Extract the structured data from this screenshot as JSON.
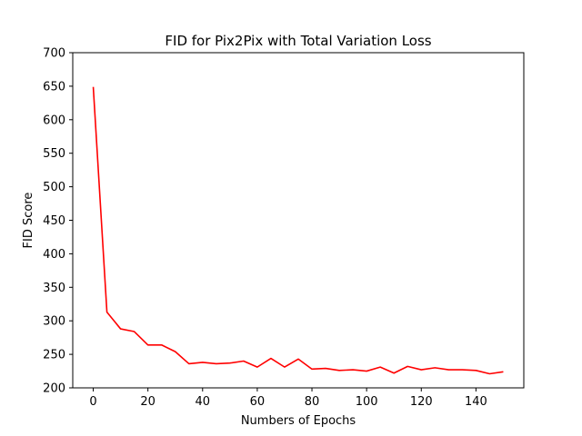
{
  "chart_data": {
    "type": "line",
    "title": "FID for Pix2Pix with Total Variation Loss",
    "xlabel": "Numbers of Epochs",
    "ylabel": "FID Score",
    "xlim": [
      -7.5,
      157.5
    ],
    "ylim": [
      200,
      700
    ],
    "xticks": [
      0,
      20,
      40,
      60,
      80,
      100,
      120,
      140
    ],
    "yticks": [
      200,
      250,
      300,
      350,
      400,
      450,
      500,
      550,
      600,
      650,
      700
    ],
    "grid": false,
    "legend": "none",
    "series": [
      {
        "color": "#ff0000",
        "x": [
          0,
          5,
          10,
          15,
          20,
          25,
          30,
          35,
          40,
          45,
          50,
          55,
          60,
          65,
          70,
          75,
          80,
          85,
          90,
          95,
          100,
          105,
          110,
          115,
          120,
          125,
          130,
          135,
          140,
          145,
          150
        ],
        "values": [
          649,
          313,
          288,
          284,
          264,
          264,
          254,
          236,
          238,
          236,
          237,
          240,
          231,
          244,
          231,
          243,
          228,
          229,
          226,
          227,
          225,
          231,
          222,
          232,
          227,
          230,
          227,
          227,
          226,
          221,
          224
        ]
      }
    ]
  }
}
